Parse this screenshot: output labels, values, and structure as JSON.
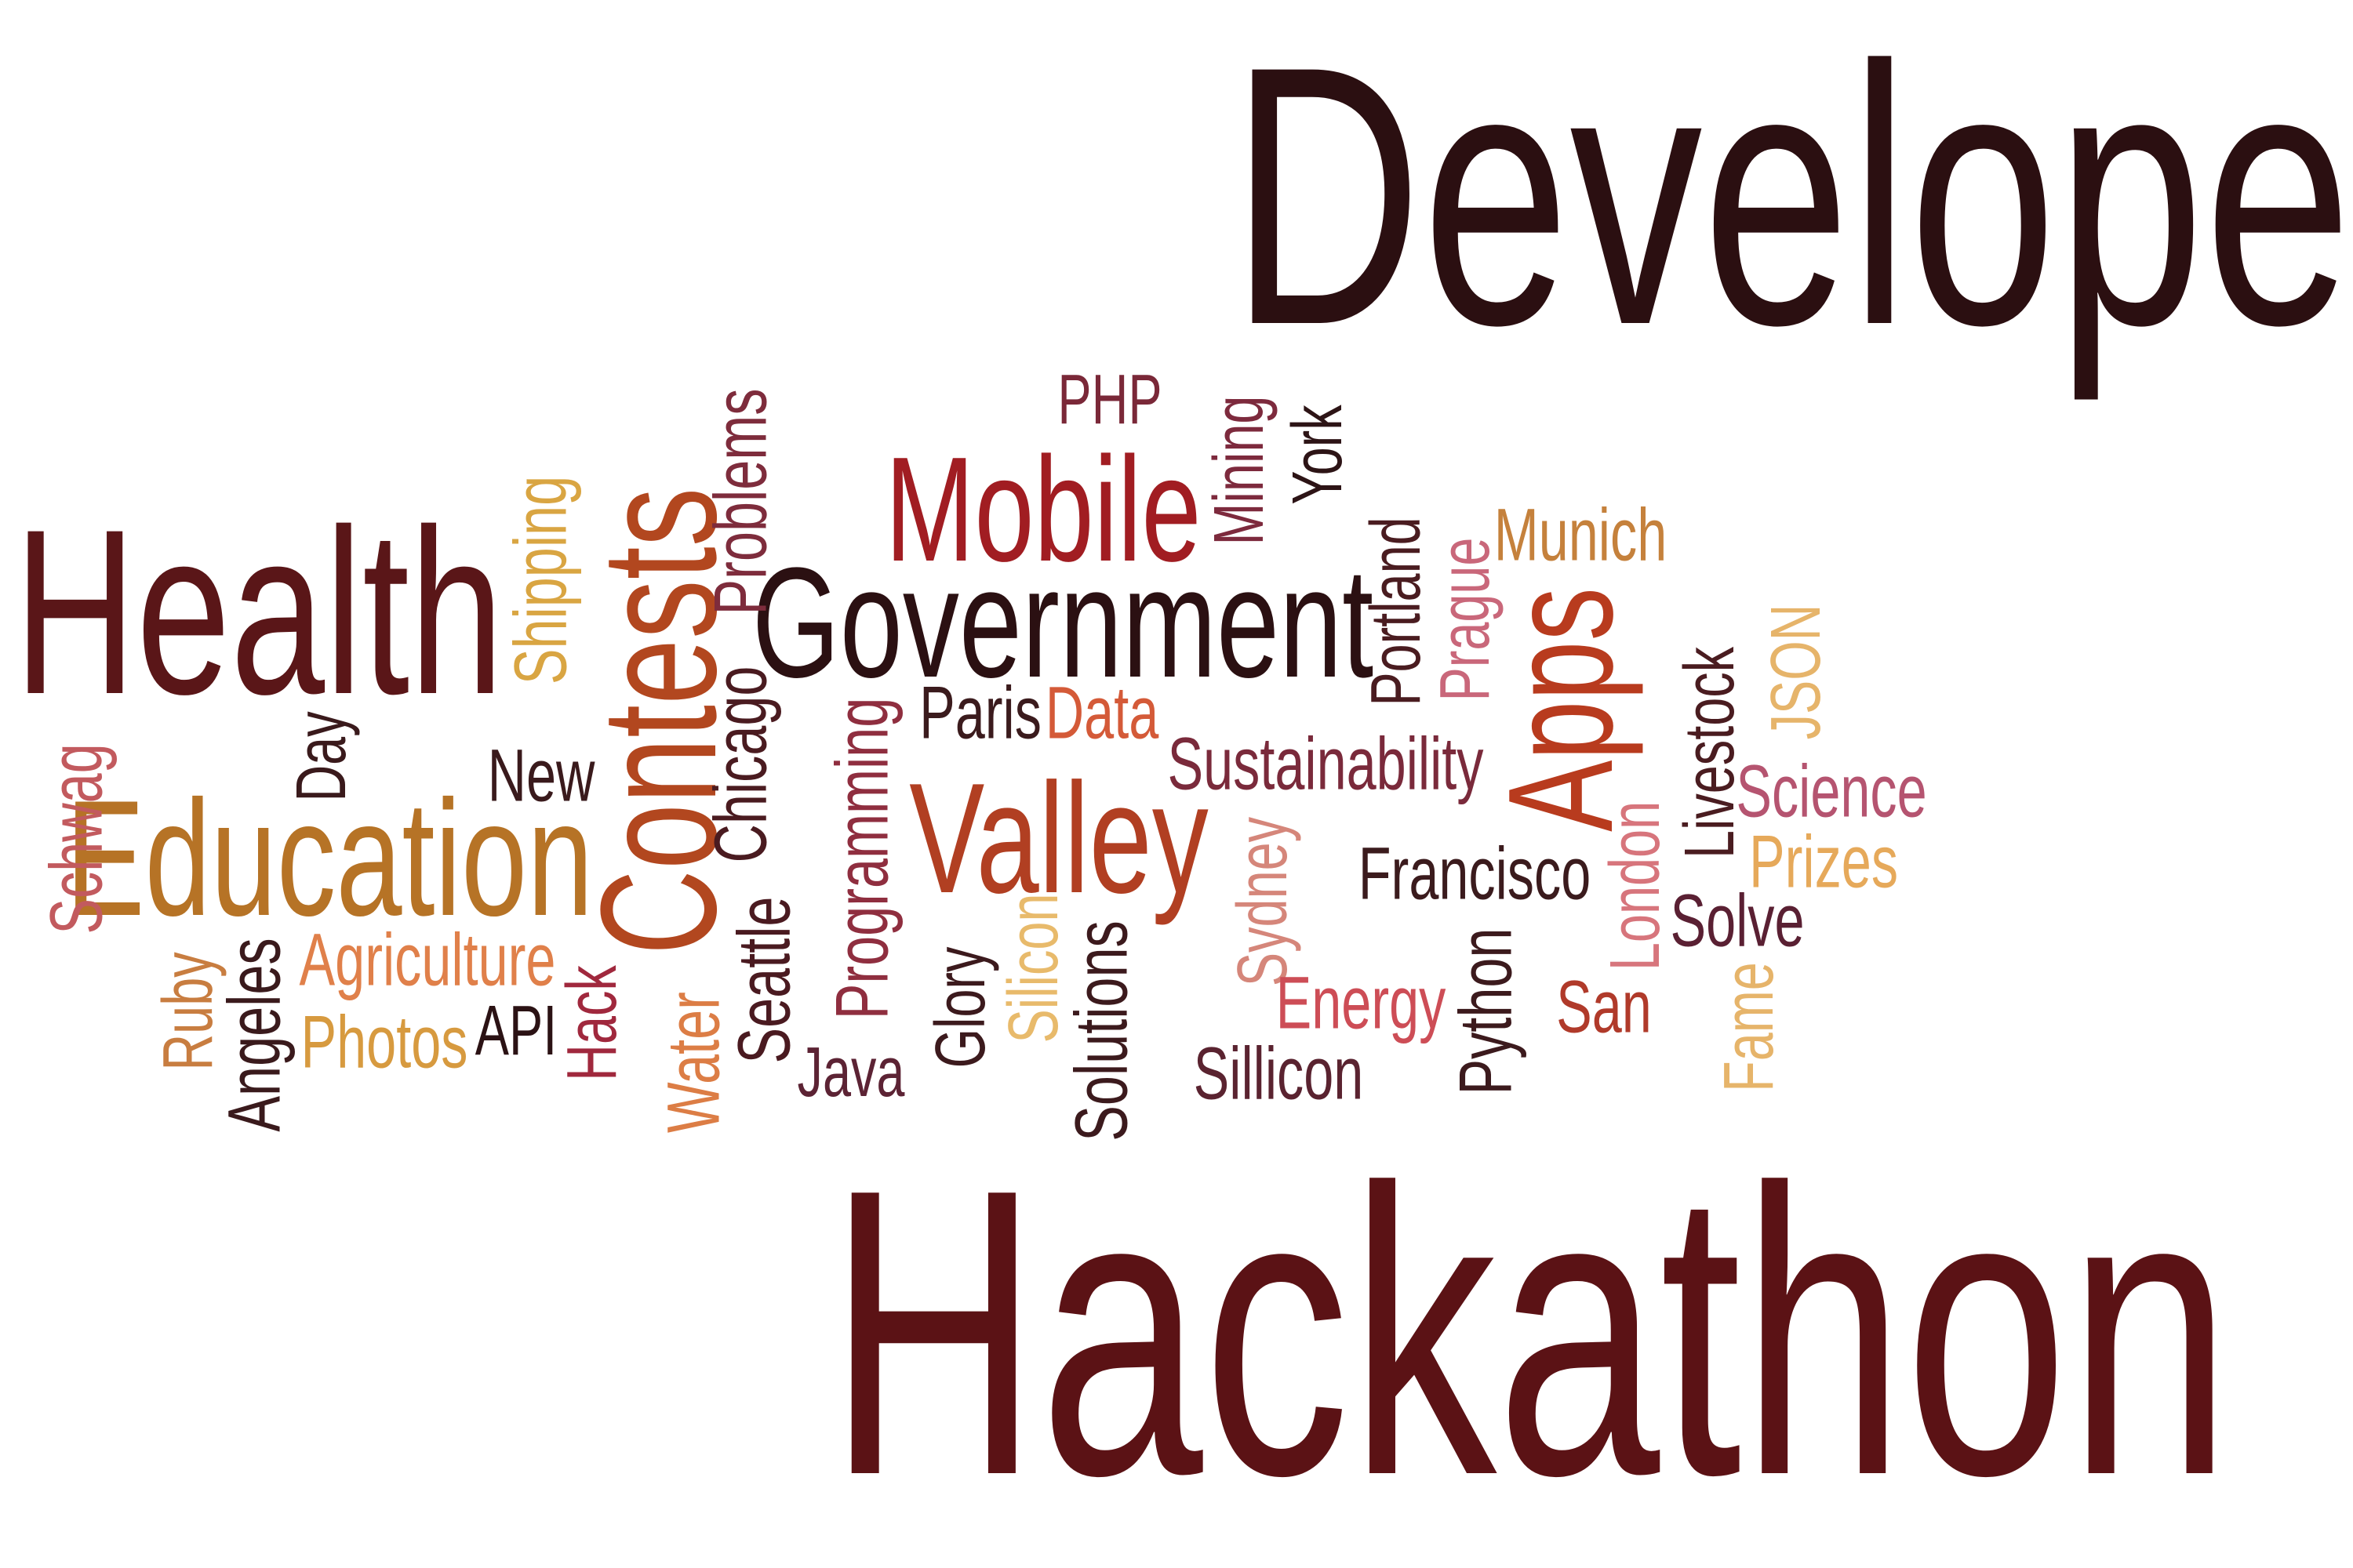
{
  "title_top": "Developer",
  "title_bottom": "Hackathon",
  "words": {
    "health": "Health",
    "government": "Government",
    "mobile": "Mobile",
    "education": "Education",
    "valley": "Valley",
    "contests": "Contests",
    "apps": "Apps",
    "problems": "Problems",
    "shipping": "Shipping",
    "php": "PHP",
    "mining": "Mining",
    "york": "York",
    "portland": "Portland",
    "prague": "Prague",
    "munich": "Munich",
    "paris": "Paris",
    "data": "Data",
    "sustainability": "Sustainability",
    "new": "New",
    "day": "Day",
    "chicago": "Chicago",
    "programming": "Programming",
    "livestock": "Livestock",
    "json": "JSON",
    "science": "Science",
    "prizes": "Prizes",
    "francisco": "Francisco",
    "sydney": "Sydney",
    "schwag": "Schwag",
    "agriculture": "Agriculture",
    "photos": "Photos",
    "api": "API",
    "ruby": "Ruby",
    "angeles": "Angeles",
    "hack": "Hack",
    "water": "Water",
    "seattle": "Seattle",
    "java": "Java",
    "glory": "Glory",
    "silicon": "Silicon",
    "solutions": "Solutions",
    "energy": "Energy",
    "sillicon": "Sillicon",
    "python": "Python",
    "london": "London",
    "san": "San",
    "solve": "Solve",
    "fame": "Fame"
  }
}
